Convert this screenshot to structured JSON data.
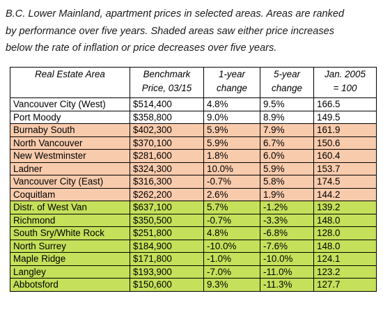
{
  "caption": {
    "lines": [
      "B.C. Lower Mainland, apartment prices in selected areas. Areas are ranked",
      "by performance over five years. Shaded areas saw either price increases",
      "below the rate of inflation or price decreases over five years."
    ]
  },
  "colors": {
    "peach_band": "#f9cbad",
    "green_band": "#c5e05a",
    "white_band": "#ffffff",
    "border": "#000000"
  },
  "table": {
    "headers": [
      [
        "Real Estate Area"
      ],
      [
        "Benchmark",
        "Price, 03/15"
      ],
      [
        "1-year",
        "change"
      ],
      [
        "5-year",
        "change"
      ],
      [
        "Jan. 2005",
        "= 100"
      ]
    ],
    "rows": [
      {
        "band": "white",
        "cells": [
          "Vancouver City (West)",
          "$514,400",
          "4.8%",
          "9.5%",
          "166.5"
        ]
      },
      {
        "band": "white",
        "cells": [
          "Port Moody",
          "$358,800",
          "9.0%",
          "8.9%",
          "149.5"
        ]
      },
      {
        "band": "peach",
        "cells": [
          "Burnaby South",
          "$402,300",
          "5.9%",
          "7.9%",
          "161.9"
        ]
      },
      {
        "band": "peach",
        "cells": [
          "North Vancouver",
          "$370,100",
          "5.9%",
          "6.7%",
          "150.6"
        ]
      },
      {
        "band": "peach",
        "cells": [
          "New Westminster",
          "$281,600",
          "1.8%",
          "6.0%",
          "160.4"
        ]
      },
      {
        "band": "peach",
        "cells": [
          "Ladner",
          "$324,300",
          "10.0%",
          "5.9%",
          "153.7"
        ]
      },
      {
        "band": "peach",
        "cells": [
          "Vancouver City (East)",
          "$316,300",
          "-0.7%",
          "5.8%",
          "174.5"
        ]
      },
      {
        "band": "peach",
        "cells": [
          "Coquitlam",
          "$262,200",
          "2.6%",
          "1.9%",
          "144.2"
        ]
      },
      {
        "band": "green",
        "cells": [
          "Distr. of West Van",
          "$637,100",
          "5.7%",
          "-1.2%",
          "139.2"
        ]
      },
      {
        "band": "green",
        "cells": [
          "Richmond",
          "$350,500",
          "-0.7%",
          "-3.3%",
          "148.0"
        ]
      },
      {
        "band": "green",
        "cells": [
          "South Sry/White Rock",
          "$251,800",
          "4.8%",
          "-6.8%",
          "128.0"
        ]
      },
      {
        "band": "green",
        "cells": [
          "North Surrey",
          "$184,900",
          "-10.0%",
          "-7.6%",
          "148.0"
        ]
      },
      {
        "band": "green",
        "cells": [
          "Maple Ridge",
          "$171,800",
          "-1.0%",
          "-10.0%",
          "124.1"
        ]
      },
      {
        "band": "green",
        "cells": [
          "Langley",
          "$193,900",
          "-7.0%",
          "-11.0%",
          "123.2"
        ]
      },
      {
        "band": "green",
        "cells": [
          "Abbotsford",
          "$150,600",
          "9.3%",
          "-11.3%",
          "127.7"
        ]
      }
    ]
  }
}
